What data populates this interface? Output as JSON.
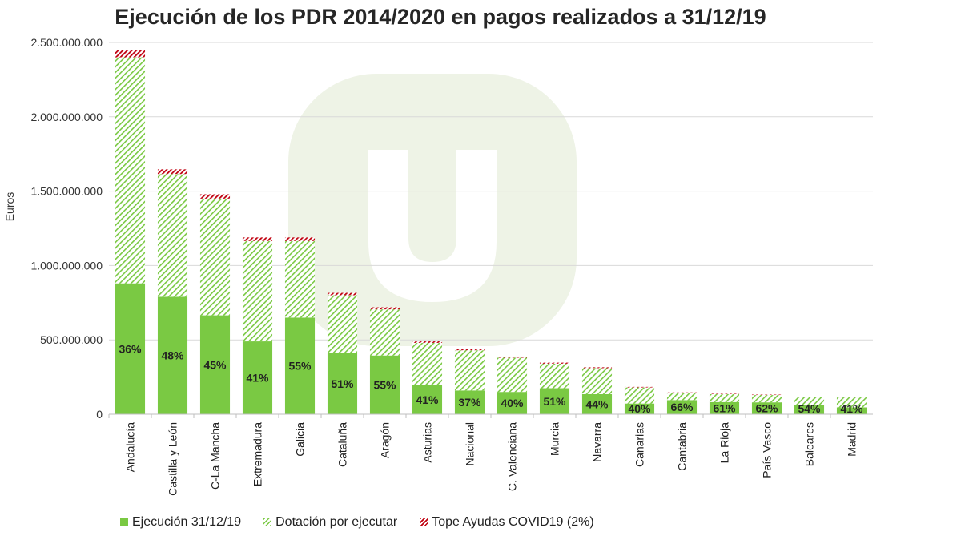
{
  "chart_data": {
    "type": "bar",
    "stacked": true,
    "title": "Ejecución de los PDR 2014/2020 en pagos realizados a 31/12/19",
    "xlabel": "",
    "ylabel": "Euros",
    "ylim": [
      0,
      2500000000
    ],
    "yticks": [
      0,
      500000000,
      1000000000,
      1500000000,
      2000000000,
      2500000000
    ],
    "ytick_labels": [
      "0",
      "500.000.000",
      "1.000.000.000",
      "1.500.000.000",
      "2.000.000.000",
      "2.500.000.000"
    ],
    "grid": true,
    "legend_position": "bottom",
    "categories": [
      "Andalucía",
      "Castilla y León",
      "C-La Mancha",
      "Extremadura",
      "Galicia",
      "Cataluña",
      "Aragón",
      "Asturias",
      "Nacional",
      "C. Valenciana",
      "Murcia",
      "Navarra",
      "Canarias",
      "Cantabria",
      "La Rioja",
      "País Vasco",
      "Baleares",
      "Madrid"
    ],
    "series": [
      {
        "name": "Ejecución 31/12/19",
        "color": "#7ac943",
        "values": [
          880000000,
          790000000,
          665000000,
          490000000,
          650000000,
          410000000,
          395000000,
          195000000,
          160000000,
          150000000,
          175000000,
          135000000,
          72000000,
          95000000,
          82000000,
          80000000,
          62000000,
          46000000
        ]
      },
      {
        "name": "Dotación por ejecutar",
        "color": "#7ac943",
        "values": [
          1520000000,
          825000000,
          785000000,
          675000000,
          515000000,
          390000000,
          310000000,
          285000000,
          270000000,
          230000000,
          165000000,
          175000000,
          108000000,
          49000000,
          53000000,
          49000000,
          54000000,
          67000000
        ]
      },
      {
        "name": "Tope Ayudas COVID19 (2%)",
        "color": "#c0000f",
        "values": [
          48000000,
          32000000,
          29000000,
          24000000,
          24000000,
          16000000,
          14000000,
          10000000,
          9000000,
          8000000,
          7000000,
          6000000,
          4000000,
          3000000,
          3000000,
          3000000,
          2000000,
          2000000
        ]
      }
    ],
    "data_labels": [
      "36%",
      "48%",
      "45%",
      "41%",
      "55%",
      "51%",
      "55%",
      "41%",
      "37%",
      "40%",
      "51%",
      "44%",
      "40%",
      "66%",
      "61%",
      "62%",
      "54%",
      "41%"
    ]
  }
}
